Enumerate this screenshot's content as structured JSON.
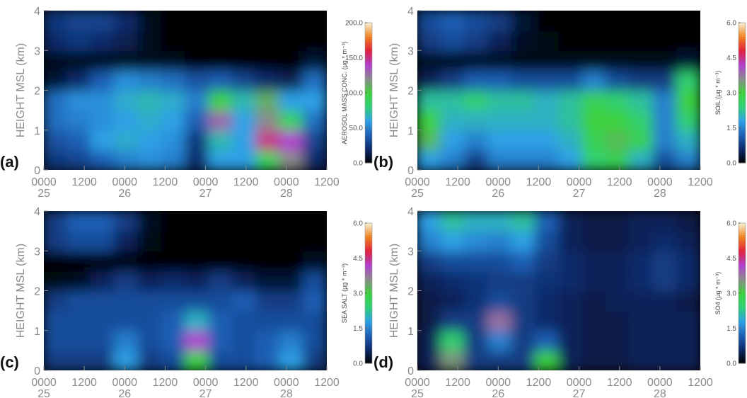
{
  "chart_data": [
    {
      "type": "contour",
      "panel_label": "(a)",
      "ylabel": "HEIGHT MSL (km)",
      "colorbar_label": "AEROSOL MASS CONC. (μg * m⁻³)",
      "xlim": [
        0,
        84
      ],
      "ylim": [
        0,
        4
      ],
      "xticks": [
        {
          "value": 0,
          "label": "0000",
          "day": "25"
        },
        {
          "value": 12,
          "label": "1200"
        },
        {
          "value": 24,
          "label": "0000",
          "day": "26"
        },
        {
          "value": 36,
          "label": "1200"
        },
        {
          "value": 48,
          "label": "0000",
          "day": "27"
        },
        {
          "value": 60,
          "label": "1200"
        },
        {
          "value": 72,
          "label": "0000",
          "day": "28"
        },
        {
          "value": 84,
          "label": "1200"
        }
      ],
      "yticks": [
        0,
        1,
        2,
        3,
        4
      ],
      "zlim": [
        0,
        200
      ],
      "zticks": [
        {
          "value": 0,
          "label": "0.0"
        },
        {
          "value": 50,
          "label": "50.0"
        },
        {
          "value": 100,
          "label": "100.0"
        },
        {
          "value": 150,
          "label": "150.0"
        },
        {
          "value": 200,
          "label": "200.0"
        }
      ],
      "colormap": [
        "#000000",
        "#0c2a6a",
        "#1f5fb4",
        "#2ea0e6",
        "#2fd07a",
        "#3ed23e",
        "#8a8a8a",
        "#b040d0",
        "#e02040",
        "#f08020",
        "#f8f0d0"
      ],
      "x": [
        3.5,
        10.5,
        17.5,
        24.5,
        31.5,
        38.5,
        45.5,
        52.5,
        59.5,
        66.5,
        73.5,
        80.5
      ],
      "y": [
        0.25,
        0.75,
        1.25,
        1.75,
        2.25,
        2.75,
        3.25,
        3.75
      ],
      "z": [
        [
          25,
          30,
          40,
          50,
          55,
          50,
          20,
          60,
          60,
          90,
          120,
          20
        ],
        [
          35,
          40,
          60,
          65,
          60,
          55,
          25,
          70,
          60,
          150,
          140,
          30
        ],
        [
          45,
          50,
          55,
          60,
          65,
          60,
          40,
          130,
          60,
          120,
          90,
          45
        ],
        [
          45,
          55,
          55,
          65,
          70,
          65,
          50,
          100,
          70,
          110,
          60,
          60
        ],
        [
          10,
          20,
          40,
          55,
          50,
          45,
          35,
          40,
          30,
          20,
          15,
          45
        ],
        [
          5,
          5,
          5,
          5,
          5,
          5,
          0,
          0,
          0,
          0,
          0,
          10
        ],
        [
          20,
          25,
          20,
          15,
          5,
          0,
          0,
          0,
          0,
          0,
          0,
          0
        ],
        [
          25,
          30,
          30,
          20,
          5,
          0,
          0,
          0,
          0,
          0,
          0,
          0
        ]
      ]
    },
    {
      "type": "contour",
      "panel_label": "(b)",
      "ylabel": "HEIGHT MSL (km)",
      "colorbar_label": "SOIL (μg * m⁻³)",
      "xlim": [
        0,
        84
      ],
      "ylim": [
        0,
        4
      ],
      "xticks": [
        {
          "value": 0,
          "label": "0000",
          "day": "25"
        },
        {
          "value": 12,
          "label": "1200"
        },
        {
          "value": 24,
          "label": "0000",
          "day": "26"
        },
        {
          "value": 36,
          "label": "1200"
        },
        {
          "value": 48,
          "label": "0000",
          "day": "27"
        },
        {
          "value": 60,
          "label": "1200"
        },
        {
          "value": 72,
          "label": "0000",
          "day": "28"
        },
        {
          "value": 84,
          "label": "1200"
        }
      ],
      "yticks": [
        0,
        1,
        2,
        3,
        4
      ],
      "zlim": [
        0,
        6
      ],
      "zticks": [
        {
          "value": 0,
          "label": "0.0"
        },
        1.5,
        {
          "value": 3,
          "label": "3.0"
        },
        4.5,
        {
          "value": 6,
          "label": "6.0"
        }
      ],
      "colormap": [
        "#000000",
        "#0c2a6a",
        "#1f5fb4",
        "#2ea0e6",
        "#2fd07a",
        "#3ed23e",
        "#8a8a8a",
        "#b040d0",
        "#e02040",
        "#f08020",
        "#f8f0d0"
      ],
      "x": [
        3.5,
        10.5,
        17.5,
        24.5,
        31.5,
        38.5,
        45.5,
        52.5,
        59.5,
        66.5,
        73.5,
        80.5
      ],
      "y": [
        0.25,
        0.75,
        1.25,
        1.75,
        2.25,
        2.75,
        3.25,
        3.75
      ],
      "z": [
        [
          1.8,
          1.5,
          0.8,
          1.5,
          1.5,
          1.5,
          1.8,
          2.5,
          2.8,
          2.0,
          1.0,
          1.5
        ],
        [
          3.2,
          1.8,
          1.5,
          1.8,
          1.8,
          1.8,
          2.0,
          2.8,
          3.2,
          2.8,
          1.5,
          2.0
        ],
        [
          3.0,
          2.0,
          2.0,
          2.0,
          2.0,
          2.0,
          2.2,
          3.0,
          3.0,
          2.5,
          1.5,
          2.5
        ],
        [
          2.2,
          2.2,
          2.5,
          2.2,
          2.2,
          2.0,
          2.2,
          2.8,
          2.5,
          2.2,
          1.5,
          3.0
        ],
        [
          0.5,
          0.8,
          1.2,
          1.2,
          1.0,
          1.0,
          1.0,
          1.5,
          1.0,
          0.8,
          0.8,
          2.5
        ],
        [
          0.2,
          0.2,
          0.2,
          0.2,
          0.1,
          0.1,
          0.1,
          0.1,
          0.1,
          0.1,
          0.1,
          0.3
        ],
        [
          0.8,
          1.0,
          0.8,
          0.5,
          0.2,
          0.1,
          0,
          0,
          0,
          0,
          0,
          0
        ],
        [
          1.0,
          1.2,
          1.0,
          0.8,
          0.3,
          0,
          0,
          0,
          0,
          0,
          0,
          0
        ]
      ]
    },
    {
      "type": "contour",
      "panel_label": "(c)",
      "ylabel": "HEIGHT MSL (km)",
      "colorbar_label": "SEA SALT (μg * m⁻³)",
      "xlim": [
        0,
        84
      ],
      "ylim": [
        0,
        4
      ],
      "xticks": [
        {
          "value": 0,
          "label": "0000",
          "day": "25"
        },
        {
          "value": 12,
          "label": "1200"
        },
        {
          "value": 24,
          "label": "0000",
          "day": "26"
        },
        {
          "value": 36,
          "label": "1200"
        },
        {
          "value": 48,
          "label": "0000",
          "day": "27"
        },
        {
          "value": 60,
          "label": "1200"
        },
        {
          "value": 72,
          "label": "0000",
          "day": "28"
        },
        {
          "value": 84,
          "label": "1200"
        }
      ],
      "yticks": [
        0,
        1,
        2,
        3,
        4
      ],
      "zlim": [
        0,
        6
      ],
      "zticks": [
        {
          "value": 0,
          "label": "0.0"
        },
        1.5,
        {
          "value": 3,
          "label": "3.0"
        },
        4.5,
        {
          "value": 6,
          "label": "6.0"
        }
      ],
      "colormap": [
        "#000000",
        "#0c2a6a",
        "#1f5fb4",
        "#2ea0e6",
        "#2fd07a",
        "#3ed23e",
        "#8a8a8a",
        "#b040d0",
        "#e02040",
        "#f08020",
        "#f8f0d0"
      ],
      "x": [
        3.5,
        10.5,
        17.5,
        24.5,
        31.5,
        38.5,
        45.5,
        52.5,
        59.5,
        66.5,
        73.5,
        80.5
      ],
      "y": [
        0.25,
        0.75,
        1.25,
        1.75,
        2.25,
        2.75,
        3.25,
        3.75
      ],
      "z": [
        [
          0.8,
          0.8,
          0.8,
          1.8,
          0.8,
          1.0,
          3.0,
          1.0,
          1.0,
          1.2,
          1.8,
          0.8
        ],
        [
          1.0,
          1.0,
          1.0,
          1.5,
          1.0,
          1.2,
          4.2,
          1.2,
          1.0,
          1.2,
          1.5,
          1.0
        ],
        [
          1.0,
          1.0,
          1.0,
          1.0,
          1.0,
          1.2,
          2.0,
          1.2,
          1.0,
          1.0,
          1.0,
          1.0
        ],
        [
          0.8,
          1.0,
          1.0,
          1.0,
          1.0,
          1.0,
          1.0,
          1.0,
          1.2,
          0.8,
          0.8,
          1.2
        ],
        [
          0.1,
          0.2,
          0.5,
          0.8,
          0.5,
          0.6,
          0.5,
          0.8,
          0.5,
          0.3,
          0.3,
          1.0
        ],
        [
          0,
          0,
          0,
          0,
          0,
          0,
          0,
          0,
          0,
          0,
          0,
          0.2
        ],
        [
          0.8,
          1.0,
          1.0,
          0.5,
          0.1,
          0,
          0,
          0,
          0,
          0,
          0,
          0
        ],
        [
          0.8,
          1.2,
          1.2,
          0.8,
          0.2,
          0,
          0,
          0,
          0,
          0,
          0,
          0
        ]
      ]
    },
    {
      "type": "contour",
      "panel_label": "(d)",
      "ylabel": "HEIGHT MSL (km)",
      "colorbar_label": "SO4 (μg * m⁻³)",
      "xlim": [
        0,
        84
      ],
      "ylim": [
        0,
        4
      ],
      "xticks": [
        {
          "value": 0,
          "label": "0000",
          "day": "25"
        },
        {
          "value": 12,
          "label": "1200"
        },
        {
          "value": 24,
          "label": "0000",
          "day": "26"
        },
        {
          "value": 36,
          "label": "1200"
        },
        {
          "value": 48,
          "label": "0000",
          "day": "27"
        },
        {
          "value": 60,
          "label": "1200"
        },
        {
          "value": 72,
          "label": "0000",
          "day": "28"
        },
        {
          "value": 84,
          "label": "1200"
        }
      ],
      "yticks": [
        0,
        1,
        2,
        3,
        4
      ],
      "zlim": [
        0,
        6
      ],
      "zticks": [
        {
          "value": 0,
          "label": "0.0"
        },
        1.5,
        {
          "value": 3,
          "label": "3.0"
        },
        4.5,
        {
          "value": 6,
          "label": "6.0"
        }
      ],
      "colormap": [
        "#000000",
        "#0c2a6a",
        "#1f5fb4",
        "#2ea0e6",
        "#2fd07a",
        "#3ed23e",
        "#8a8a8a",
        "#b040d0",
        "#e02040",
        "#f08020",
        "#f8f0d0"
      ],
      "x": [
        3.5,
        10.5,
        17.5,
        24.5,
        31.5,
        38.5,
        45.5,
        52.5,
        59.5,
        66.5,
        73.5,
        80.5
      ],
      "y": [
        0.25,
        0.75,
        1.25,
        1.75,
        2.25,
        2.75,
        3.25,
        3.75
      ],
      "z": [
        [
          0.5,
          3.5,
          0.8,
          0.8,
          0.8,
          3.0,
          0.5,
          0.4,
          0.4,
          0.5,
          0.5,
          0.5
        ],
        [
          0.5,
          2.5,
          0.8,
          1.5,
          0.8,
          1.2,
          0.5,
          0.4,
          0.4,
          0.5,
          0.5,
          0.5
        ],
        [
          0.4,
          0.8,
          0.8,
          3.8,
          0.8,
          0.6,
          0.5,
          0.4,
          0.4,
          0.5,
          0.5,
          0.5
        ],
        [
          0.4,
          0.5,
          0.7,
          1.0,
          0.8,
          0.6,
          0.5,
          0.4,
          0.5,
          0.5,
          0.5,
          0.4
        ],
        [
          0.5,
          0.6,
          0.7,
          0.8,
          0.8,
          0.7,
          0.6,
          0.5,
          0.5,
          0.6,
          0.8,
          0.6
        ],
        [
          0.8,
          1.0,
          1.0,
          1.0,
          1.2,
          0.8,
          0.6,
          0.5,
          0.5,
          0.6,
          0.8,
          0.6
        ],
        [
          1.5,
          1.8,
          1.6,
          1.5,
          1.8,
          1.0,
          0.5,
          0.4,
          0.4,
          0.5,
          0.6,
          0.5
        ],
        [
          1.8,
          2.2,
          2.0,
          2.0,
          2.2,
          1.2,
          0.5,
          0.4,
          0.4,
          0.5,
          0.5,
          0.4
        ]
      ]
    }
  ]
}
